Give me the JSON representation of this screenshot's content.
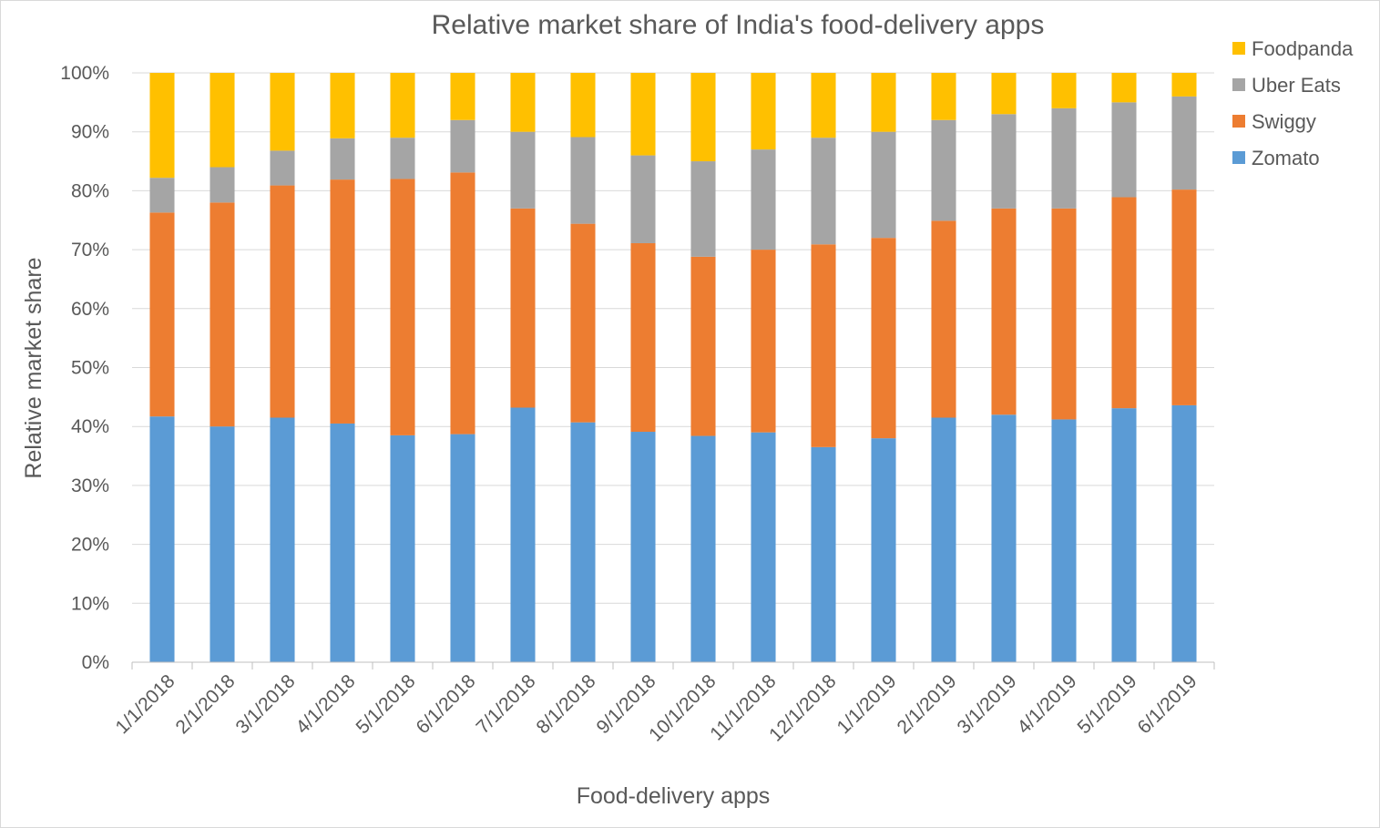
{
  "chart_data": {
    "type": "bar",
    "stacked": true,
    "title": "Relative market share of India's food-delivery apps",
    "xlabel": "Food-delivery apps",
    "ylabel": "Relative market share",
    "ylim": [
      0,
      100
    ],
    "yticks": [
      "0%",
      "10%",
      "20%",
      "30%",
      "40%",
      "50%",
      "60%",
      "70%",
      "80%",
      "90%",
      "100%"
    ],
    "grid": true,
    "legend_position": "top-right",
    "categories": [
      "1/1/2018",
      "2/1/2018",
      "3/1/2018",
      "4/1/2018",
      "5/1/2018",
      "6/1/2018",
      "7/1/2018",
      "8/1/2018",
      "9/1/2018",
      "10/1/2018",
      "11/1/2018",
      "12/1/2018",
      "1/1/2019",
      "2/1/2019",
      "3/1/2019",
      "4/1/2019",
      "5/1/2019",
      "6/1/2019"
    ],
    "series": [
      {
        "name": "Zomato",
        "color": "#5b9bd5",
        "values": [
          41.7,
          40.0,
          41.5,
          40.5,
          38.5,
          38.7,
          43.2,
          40.7,
          39.1,
          38.4,
          39.0,
          36.5,
          38.0,
          41.5,
          42.0,
          41.2,
          43.1,
          43.6
        ]
      },
      {
        "name": "Swiggy",
        "color": "#ed7d31",
        "values": [
          34.6,
          38.0,
          39.4,
          41.4,
          43.5,
          44.4,
          33.8,
          33.7,
          32.0,
          30.4,
          31.0,
          34.4,
          34.0,
          33.4,
          35.0,
          35.8,
          35.8,
          36.6
        ]
      },
      {
        "name": "Uber Eats",
        "color": "#a5a5a5",
        "values": [
          5.9,
          6.0,
          5.9,
          7.0,
          7.0,
          8.9,
          13.0,
          14.7,
          14.9,
          16.2,
          17.0,
          18.1,
          18.0,
          17.1,
          16.0,
          17.0,
          16.1,
          15.8
        ]
      },
      {
        "name": "Foodpanda",
        "color": "#ffc000",
        "values": [
          17.8,
          16.0,
          13.2,
          11.1,
          11.0,
          8.0,
          10.0,
          10.9,
          14.0,
          15.0,
          13.0,
          11.0,
          10.0,
          8.0,
          7.0,
          6.0,
          5.0,
          4.0
        ]
      }
    ]
  }
}
